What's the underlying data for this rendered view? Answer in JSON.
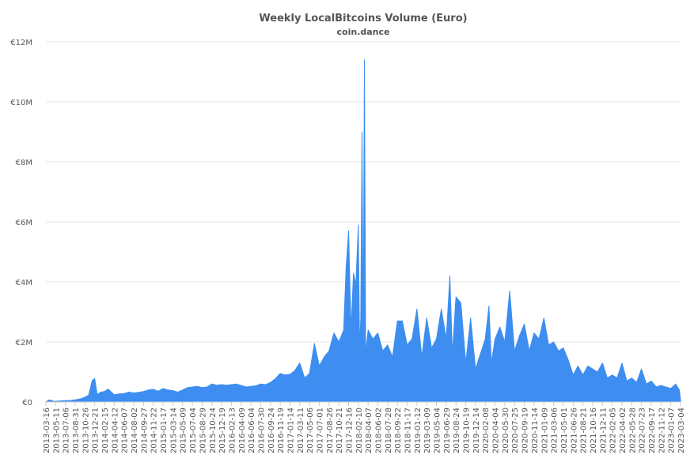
{
  "chart_data": {
    "type": "area",
    "title": "Weekly LocalBitcoins Volume (Euro)",
    "subtitle": "coin.dance",
    "xlabel": "",
    "ylabel": "",
    "ylim": [
      0,
      12000000
    ],
    "y_ticks": [
      "€0",
      "€2M",
      "€4M",
      "€6M",
      "€8M",
      "€10M",
      "€12M"
    ],
    "y_tick_values": [
      0,
      2000000,
      4000000,
      6000000,
      8000000,
      10000000,
      12000000
    ],
    "x_start": "2013-03-16",
    "x_end": "2023-03-04",
    "x_ticks": [
      "2013-03-16",
      "2013-05-11",
      "2013-07-06",
      "2013-08-31",
      "2013-10-26",
      "2013-12-21",
      "2014-02-15",
      "2014-04-12",
      "2014-06-07",
      "2014-08-02",
      "2014-09-27",
      "2014-11-22",
      "2015-01-17",
      "2015-03-14",
      "2015-05-09",
      "2015-07-04",
      "2015-08-29",
      "2015-10-24",
      "2015-12-19",
      "2016-02-13",
      "2016-04-09",
      "2016-06-04",
      "2016-07-30",
      "2016-09-24",
      "2016-11-19",
      "2017-01-14",
      "2017-03-11",
      "2017-05-06",
      "2017-07-01",
      "2017-08-26",
      "2017-10-21",
      "2017-12-16",
      "2018-02-10",
      "2018-04-07",
      "2018-06-02",
      "2018-07-28",
      "2018-09-22",
      "2018-11-17",
      "2019-01-12",
      "2019-03-09",
      "2019-05-04",
      "2019-06-29",
      "2019-08-24",
      "2019-10-19",
      "2019-12-14",
      "2020-02-08",
      "2020-04-04",
      "2020-05-30",
      "2020-07-25",
      "2020-09-19",
      "2020-11-14",
      "2021-01-09",
      "2021-03-06",
      "2021-05-01",
      "2021-06-26",
      "2021-08-21",
      "2021-10-16",
      "2021-12-11",
      "2022-02-05",
      "2022-04-02",
      "2022-05-28",
      "2022-07-23",
      "2022-09-17",
      "2022-11-12",
      "2023-01-07",
      "2023-03-04"
    ],
    "grid": true,
    "series": [
      {
        "color": "#3d8ef0",
        "points": [
          [
            "2013-03-16",
            5000
          ],
          [
            "2013-04-06",
            70000
          ],
          [
            "2013-05-04",
            20000
          ],
          [
            "2013-06-01",
            35000
          ],
          [
            "2013-07-06",
            45000
          ],
          [
            "2013-08-03",
            50000
          ],
          [
            "2013-09-07",
            80000
          ],
          [
            "2013-10-05",
            110000
          ],
          [
            "2013-10-26",
            160000
          ],
          [
            "2013-11-16",
            230000
          ],
          [
            "2013-12-07",
            720000
          ],
          [
            "2013-12-21",
            780000
          ],
          [
            "2014-01-04",
            250000
          ],
          [
            "2014-01-25",
            330000
          ],
          [
            "2014-02-15",
            350000
          ],
          [
            "2014-03-08",
            430000
          ],
          [
            "2014-04-12",
            240000
          ],
          [
            "2014-05-10",
            270000
          ],
          [
            "2014-06-07",
            280000
          ],
          [
            "2014-07-05",
            330000
          ],
          [
            "2014-08-02",
            300000
          ],
          [
            "2014-08-30",
            320000
          ],
          [
            "2014-09-27",
            350000
          ],
          [
            "2014-10-25",
            400000
          ],
          [
            "2014-11-22",
            420000
          ],
          [
            "2014-12-20",
            360000
          ],
          [
            "2015-01-17",
            450000
          ],
          [
            "2015-02-14",
            400000
          ],
          [
            "2015-03-14",
            380000
          ],
          [
            "2015-04-11",
            330000
          ],
          [
            "2015-05-09",
            400000
          ],
          [
            "2015-06-06",
            480000
          ],
          [
            "2015-07-04",
            500000
          ],
          [
            "2015-08-01",
            520000
          ],
          [
            "2015-08-29",
            480000
          ],
          [
            "2015-09-26",
            500000
          ],
          [
            "2015-10-24",
            600000
          ],
          [
            "2015-11-21",
            560000
          ],
          [
            "2015-12-19",
            580000
          ],
          [
            "2016-01-16",
            560000
          ],
          [
            "2016-02-13",
            580000
          ],
          [
            "2016-03-12",
            600000
          ],
          [
            "2016-04-09",
            550000
          ],
          [
            "2016-05-07",
            500000
          ],
          [
            "2016-06-04",
            520000
          ],
          [
            "2016-07-02",
            540000
          ],
          [
            "2016-07-30",
            600000
          ],
          [
            "2016-08-27",
            580000
          ],
          [
            "2016-09-24",
            650000
          ],
          [
            "2016-10-22",
            780000
          ],
          [
            "2016-11-19",
            950000
          ],
          [
            "2016-12-17",
            900000
          ],
          [
            "2017-01-14",
            920000
          ],
          [
            "2017-02-11",
            1050000
          ],
          [
            "2017-03-11",
            1300000
          ],
          [
            "2017-04-08",
            800000
          ],
          [
            "2017-05-06",
            950000
          ],
          [
            "2017-06-03",
            1950000
          ],
          [
            "2017-07-01",
            1200000
          ],
          [
            "2017-07-29",
            1500000
          ],
          [
            "2017-08-26",
            1700000
          ],
          [
            "2017-09-23",
            2300000
          ],
          [
            "2017-10-21",
            2000000
          ],
          [
            "2017-11-18",
            2400000
          ],
          [
            "2017-12-02",
            4500000
          ],
          [
            "2017-12-16",
            5700000
          ],
          [
            "2017-12-30",
            2400000
          ],
          [
            "2018-01-13",
            4300000
          ],
          [
            "2018-01-27",
            3900000
          ],
          [
            "2018-02-10",
            5900000
          ],
          [
            "2018-02-17",
            1800000
          ],
          [
            "2018-02-24",
            2800000
          ],
          [
            "2018-03-03",
            9000000
          ],
          [
            "2018-03-10",
            1700000
          ],
          [
            "2018-03-17",
            11400000
          ],
          [
            "2018-03-24",
            1600000
          ],
          [
            "2018-04-07",
            2400000
          ],
          [
            "2018-05-05",
            2100000
          ],
          [
            "2018-06-02",
            2300000
          ],
          [
            "2018-06-30",
            1700000
          ],
          [
            "2018-07-28",
            1900000
          ],
          [
            "2018-08-25",
            1500000
          ],
          [
            "2018-09-22",
            2700000
          ],
          [
            "2018-10-20",
            2700000
          ],
          [
            "2018-11-17",
            1900000
          ],
          [
            "2018-12-15",
            2100000
          ],
          [
            "2019-01-12",
            3100000
          ],
          [
            "2019-02-09",
            1500000
          ],
          [
            "2019-03-09",
            2800000
          ],
          [
            "2019-04-06",
            1800000
          ],
          [
            "2019-05-04",
            2100000
          ],
          [
            "2019-06-01",
            3100000
          ],
          [
            "2019-06-29",
            2100000
          ],
          [
            "2019-07-20",
            4200000
          ],
          [
            "2019-08-03",
            1600000
          ],
          [
            "2019-08-24",
            3500000
          ],
          [
            "2019-09-21",
            3300000
          ],
          [
            "2019-10-19",
            1300000
          ],
          [
            "2019-11-16",
            2800000
          ],
          [
            "2019-12-14",
            1100000
          ],
          [
            "2020-01-11",
            1600000
          ],
          [
            "2020-02-08",
            2100000
          ],
          [
            "2020-02-29",
            3200000
          ],
          [
            "2020-03-14",
            1300000
          ],
          [
            "2020-04-04",
            2100000
          ],
          [
            "2020-05-02",
            2500000
          ],
          [
            "2020-05-30",
            2000000
          ],
          [
            "2020-06-27",
            3700000
          ],
          [
            "2020-07-25",
            1700000
          ],
          [
            "2020-08-22",
            2200000
          ],
          [
            "2020-09-19",
            2600000
          ],
          [
            "2020-10-17",
            1700000
          ],
          [
            "2020-11-14",
            2300000
          ],
          [
            "2020-12-12",
            2100000
          ],
          [
            "2021-01-09",
            2800000
          ],
          [
            "2021-02-06",
            1900000
          ],
          [
            "2021-03-06",
            2000000
          ],
          [
            "2021-04-03",
            1700000
          ],
          [
            "2021-05-01",
            1800000
          ],
          [
            "2021-05-29",
            1400000
          ],
          [
            "2021-06-26",
            900000
          ],
          [
            "2021-07-24",
            1200000
          ],
          [
            "2021-08-21",
            900000
          ],
          [
            "2021-09-18",
            1200000
          ],
          [
            "2021-10-16",
            1100000
          ],
          [
            "2021-11-13",
            1000000
          ],
          [
            "2021-12-11",
            1300000
          ],
          [
            "2022-01-08",
            800000
          ],
          [
            "2022-02-05",
            900000
          ],
          [
            "2022-03-05",
            800000
          ],
          [
            "2022-04-02",
            1300000
          ],
          [
            "2022-04-30",
            700000
          ],
          [
            "2022-05-28",
            800000
          ],
          [
            "2022-06-25",
            650000
          ],
          [
            "2022-07-23",
            1100000
          ],
          [
            "2022-08-20",
            600000
          ],
          [
            "2022-09-17",
            700000
          ],
          [
            "2022-10-15",
            500000
          ],
          [
            "2022-11-12",
            550000
          ],
          [
            "2022-12-10",
            500000
          ],
          [
            "2023-01-07",
            450000
          ],
          [
            "2023-02-04",
            600000
          ],
          [
            "2023-02-25",
            400000
          ],
          [
            "2023-03-04",
            50000
          ]
        ]
      }
    ]
  }
}
